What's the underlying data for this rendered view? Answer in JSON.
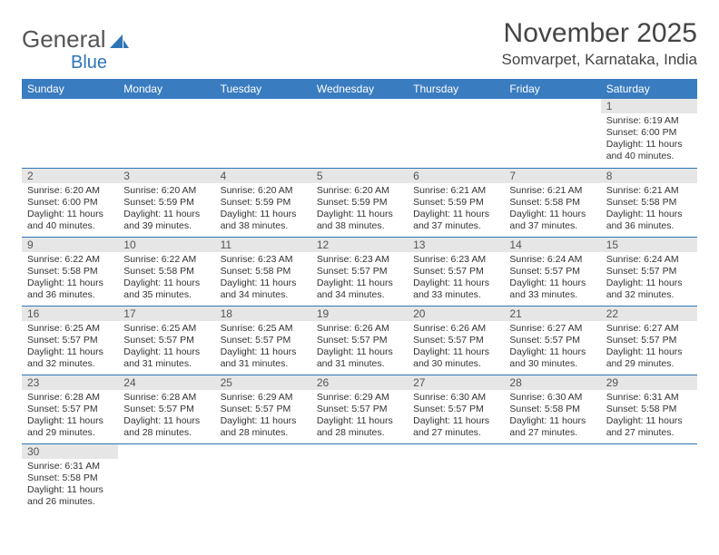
{
  "logo": {
    "part1": "General",
    "part2": "Blue"
  },
  "header": {
    "month_title": "November 2025",
    "location": "Somvarpet, Karnataka, India"
  },
  "colors": {
    "header_bg": "#3a7cc0",
    "header_text": "#ffffff",
    "daynum_bg": "#e6e6e6",
    "row_border": "#2e75b6",
    "logo_blue": "#2e75b6",
    "text": "#333333"
  },
  "weekdays": [
    "Sunday",
    "Monday",
    "Tuesday",
    "Wednesday",
    "Thursday",
    "Friday",
    "Saturday"
  ],
  "weeks": [
    [
      null,
      null,
      null,
      null,
      null,
      null,
      {
        "n": "1",
        "sr": "Sunrise: 6:19 AM",
        "ss": "Sunset: 6:00 PM",
        "dl": "Daylight: 11 hours and 40 minutes."
      }
    ],
    [
      {
        "n": "2",
        "sr": "Sunrise: 6:20 AM",
        "ss": "Sunset: 6:00 PM",
        "dl": "Daylight: 11 hours and 40 minutes."
      },
      {
        "n": "3",
        "sr": "Sunrise: 6:20 AM",
        "ss": "Sunset: 5:59 PM",
        "dl": "Daylight: 11 hours and 39 minutes."
      },
      {
        "n": "4",
        "sr": "Sunrise: 6:20 AM",
        "ss": "Sunset: 5:59 PM",
        "dl": "Daylight: 11 hours and 38 minutes."
      },
      {
        "n": "5",
        "sr": "Sunrise: 6:20 AM",
        "ss": "Sunset: 5:59 PM",
        "dl": "Daylight: 11 hours and 38 minutes."
      },
      {
        "n": "6",
        "sr": "Sunrise: 6:21 AM",
        "ss": "Sunset: 5:59 PM",
        "dl": "Daylight: 11 hours and 37 minutes."
      },
      {
        "n": "7",
        "sr": "Sunrise: 6:21 AM",
        "ss": "Sunset: 5:58 PM",
        "dl": "Daylight: 11 hours and 37 minutes."
      },
      {
        "n": "8",
        "sr": "Sunrise: 6:21 AM",
        "ss": "Sunset: 5:58 PM",
        "dl": "Daylight: 11 hours and 36 minutes."
      }
    ],
    [
      {
        "n": "9",
        "sr": "Sunrise: 6:22 AM",
        "ss": "Sunset: 5:58 PM",
        "dl": "Daylight: 11 hours and 36 minutes."
      },
      {
        "n": "10",
        "sr": "Sunrise: 6:22 AM",
        "ss": "Sunset: 5:58 PM",
        "dl": "Daylight: 11 hours and 35 minutes."
      },
      {
        "n": "11",
        "sr": "Sunrise: 6:23 AM",
        "ss": "Sunset: 5:58 PM",
        "dl": "Daylight: 11 hours and 34 minutes."
      },
      {
        "n": "12",
        "sr": "Sunrise: 6:23 AM",
        "ss": "Sunset: 5:57 PM",
        "dl": "Daylight: 11 hours and 34 minutes."
      },
      {
        "n": "13",
        "sr": "Sunrise: 6:23 AM",
        "ss": "Sunset: 5:57 PM",
        "dl": "Daylight: 11 hours and 33 minutes."
      },
      {
        "n": "14",
        "sr": "Sunrise: 6:24 AM",
        "ss": "Sunset: 5:57 PM",
        "dl": "Daylight: 11 hours and 33 minutes."
      },
      {
        "n": "15",
        "sr": "Sunrise: 6:24 AM",
        "ss": "Sunset: 5:57 PM",
        "dl": "Daylight: 11 hours and 32 minutes."
      }
    ],
    [
      {
        "n": "16",
        "sr": "Sunrise: 6:25 AM",
        "ss": "Sunset: 5:57 PM",
        "dl": "Daylight: 11 hours and 32 minutes."
      },
      {
        "n": "17",
        "sr": "Sunrise: 6:25 AM",
        "ss": "Sunset: 5:57 PM",
        "dl": "Daylight: 11 hours and 31 minutes."
      },
      {
        "n": "18",
        "sr": "Sunrise: 6:25 AM",
        "ss": "Sunset: 5:57 PM",
        "dl": "Daylight: 11 hours and 31 minutes."
      },
      {
        "n": "19",
        "sr": "Sunrise: 6:26 AM",
        "ss": "Sunset: 5:57 PM",
        "dl": "Daylight: 11 hours and 31 minutes."
      },
      {
        "n": "20",
        "sr": "Sunrise: 6:26 AM",
        "ss": "Sunset: 5:57 PM",
        "dl": "Daylight: 11 hours and 30 minutes."
      },
      {
        "n": "21",
        "sr": "Sunrise: 6:27 AM",
        "ss": "Sunset: 5:57 PM",
        "dl": "Daylight: 11 hours and 30 minutes."
      },
      {
        "n": "22",
        "sr": "Sunrise: 6:27 AM",
        "ss": "Sunset: 5:57 PM",
        "dl": "Daylight: 11 hours and 29 minutes."
      }
    ],
    [
      {
        "n": "23",
        "sr": "Sunrise: 6:28 AM",
        "ss": "Sunset: 5:57 PM",
        "dl": "Daylight: 11 hours and 29 minutes."
      },
      {
        "n": "24",
        "sr": "Sunrise: 6:28 AM",
        "ss": "Sunset: 5:57 PM",
        "dl": "Daylight: 11 hours and 28 minutes."
      },
      {
        "n": "25",
        "sr": "Sunrise: 6:29 AM",
        "ss": "Sunset: 5:57 PM",
        "dl": "Daylight: 11 hours and 28 minutes."
      },
      {
        "n": "26",
        "sr": "Sunrise: 6:29 AM",
        "ss": "Sunset: 5:57 PM",
        "dl": "Daylight: 11 hours and 28 minutes."
      },
      {
        "n": "27",
        "sr": "Sunrise: 6:30 AM",
        "ss": "Sunset: 5:57 PM",
        "dl": "Daylight: 11 hours and 27 minutes."
      },
      {
        "n": "28",
        "sr": "Sunrise: 6:30 AM",
        "ss": "Sunset: 5:58 PM",
        "dl": "Daylight: 11 hours and 27 minutes."
      },
      {
        "n": "29",
        "sr": "Sunrise: 6:31 AM",
        "ss": "Sunset: 5:58 PM",
        "dl": "Daylight: 11 hours and 27 minutes."
      }
    ],
    [
      {
        "n": "30",
        "sr": "Sunrise: 6:31 AM",
        "ss": "Sunset: 5:58 PM",
        "dl": "Daylight: 11 hours and 26 minutes."
      },
      null,
      null,
      null,
      null,
      null,
      null
    ]
  ]
}
